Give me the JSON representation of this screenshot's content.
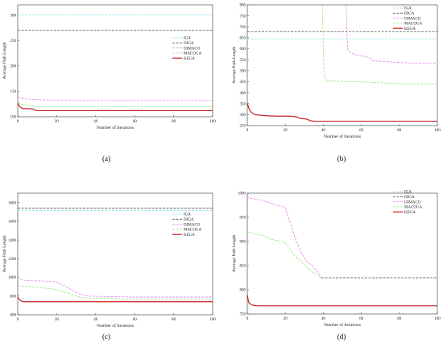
{
  "chart_data": [
    {
      "id": "a",
      "panel_label": "(a)",
      "type": "line",
      "xlabel": "Number of Iterations",
      "ylabel": "Average Path Length",
      "xlim": [
        0,
        100
      ],
      "ylim": [
        100,
        320
      ],
      "xticks": [
        "0",
        "20",
        "40",
        "60",
        "80",
        "100"
      ],
      "yticks": [
        "100",
        "150",
        "200",
        "250",
        "300"
      ],
      "grid": false,
      "legend_position": "upper-right",
      "series": [
        {
          "name": "IGA",
          "color": "#7fe8ee",
          "dash": "3,1.5",
          "width": 0.8,
          "x": [
            0,
            100
          ],
          "y": [
            300,
            300
          ]
        },
        {
          "name": "DIGA",
          "color": "#555555",
          "dash": "3,1.5",
          "width": 0.8,
          "x": [
            0,
            100
          ],
          "y": [
            270,
            270
          ]
        },
        {
          "name": "DIMACO",
          "color": "#e97ee9",
          "dash": "3,1.5",
          "width": 0.8,
          "x": [
            0,
            2,
            4,
            8,
            15,
            30,
            100
          ],
          "y": [
            138,
            136,
            135,
            134,
            133,
            132,
            132
          ]
        },
        {
          "name": "MACOGA",
          "color": "#8ee878",
          "dash": "3,1.5",
          "width": 0.8,
          "x": [
            0,
            2,
            4,
            8,
            12,
            30,
            100
          ],
          "y": [
            128,
            125,
            123,
            121,
            120,
            120,
            120
          ]
        },
        {
          "name": "KEGA",
          "color": "#c62020",
          "dash": "",
          "width": 1.2,
          "x": [
            0,
            1,
            2,
            3,
            6,
            8,
            9,
            10,
            100
          ],
          "y": [
            127,
            120,
            117,
            116,
            116,
            115,
            113,
            112,
            112
          ]
        }
      ]
    },
    {
      "id": "b",
      "panel_label": "(b)",
      "type": "line",
      "xlabel": "Number of Iterations",
      "ylabel": "Average Path Length",
      "xlim": [
        0,
        100
      ],
      "ylim": [
        250,
        800
      ],
      "xticks": [
        "0",
        "20",
        "40",
        "60",
        "80",
        "100"
      ],
      "yticks": [
        "250",
        "300",
        "350",
        "400",
        "450",
        "500",
        "550",
        "600",
        "650",
        "700",
        "750",
        "800"
      ],
      "grid": false,
      "legend_position": "top-right",
      "series": [
        {
          "name": "IGA",
          "color": "#7fe8ee",
          "dash": "3,1.5",
          "width": 0.8,
          "x": [
            0,
            100
          ],
          "y": [
            645,
            645
          ]
        },
        {
          "name": "DIGA",
          "color": "#555555",
          "dash": "3,1.5",
          "width": 0.8,
          "x": [
            0,
            100
          ],
          "y": [
            678,
            678
          ]
        },
        {
          "name": "DIMACO",
          "color": "#e97ee9",
          "dash": "3,1.5",
          "width": 0.8,
          "x": [
            52,
            52.5,
            53,
            56,
            60,
            64,
            66,
            75,
            85,
            100
          ],
          "y": [
            800,
            640,
            590,
            575,
            568,
            560,
            545,
            540,
            535,
            535
          ]
        },
        {
          "name": "MACOGA",
          "color": "#8ee878",
          "dash": "3,1.5",
          "width": 0.8,
          "x": [
            39.5,
            40,
            40.5,
            42,
            48,
            55,
            65,
            75,
            85,
            100
          ],
          "y": [
            800,
            600,
            470,
            455,
            452,
            450,
            447,
            443,
            440,
            440
          ]
        },
        {
          "name": "KEGA",
          "color": "#c62020",
          "dash": "",
          "width": 1.2,
          "x": [
            0,
            1,
            2,
            4,
            6,
            10,
            15,
            22,
            26,
            28,
            31,
            33,
            35,
            100
          ],
          "y": [
            352,
            325,
            312,
            300,
            298,
            295,
            293,
            293,
            290,
            282,
            280,
            273,
            270,
            270
          ]
        }
      ]
    },
    {
      "id": "c",
      "panel_label": "(c)",
      "type": "line",
      "xlabel": "Number of Iterations",
      "ylabel": "Average Path Length",
      "xlim": [
        0,
        100
      ],
      "ylim": [
        600,
        1900
      ],
      "xticks": [
        "0",
        "20",
        "40",
        "60",
        "80",
        "100"
      ],
      "yticks": [
        "600",
        "800",
        "1000",
        "1200",
        "1400",
        "1600",
        "1800"
      ],
      "grid": false,
      "legend_position": "center-right",
      "series": [
        {
          "name": "IGA",
          "color": "#7fe8ee",
          "dash": "3,1.5",
          "width": 0.8,
          "x": [
            0,
            100
          ],
          "y": [
            1715,
            1715
          ]
        },
        {
          "name": "DIGA",
          "color": "#555555",
          "dash": "3,1.5",
          "width": 0.8,
          "x": [
            0,
            100
          ],
          "y": [
            1740,
            1740
          ]
        },
        {
          "name": "DIMACO",
          "color": "#e97ee9",
          "dash": "3,1.5",
          "width": 0.8,
          "x": [
            0,
            2,
            5,
            15,
            20,
            24,
            28,
            32,
            36,
            45,
            60,
            100
          ],
          "y": [
            1010,
            975,
            965,
            960,
            950,
            910,
            860,
            820,
            800,
            795,
            790,
            790
          ]
        },
        {
          "name": "MACOGA",
          "color": "#8ee878",
          "dash": "3,1.5",
          "width": 0.8,
          "x": [
            0,
            3,
            10,
            20,
            26,
            30,
            34,
            40,
            60,
            100
          ],
          "y": [
            910,
            905,
            895,
            870,
            830,
            800,
            780,
            775,
            770,
            770
          ]
        },
        {
          "name": "KEGA",
          "color": "#c62020",
          "dash": "",
          "width": 1.2,
          "x": [
            0,
            1,
            2,
            3,
            100
          ],
          "y": [
            790,
            760,
            745,
            740,
            740
          ]
        }
      ]
    },
    {
      "id": "d",
      "panel_label": "(d)",
      "type": "line",
      "xlabel": "Number of Iterations",
      "ylabel": "Average Path Length",
      "xlim": [
        0,
        100
      ],
      "ylim": [
        750,
        1000
      ],
      "xticks": [
        "0",
        "20",
        "40",
        "60",
        "80",
        "100"
      ],
      "yticks": [
        "750",
        "800",
        "850",
        "900",
        "950",
        "1000"
      ],
      "grid": false,
      "legend_position": "top-right",
      "series": [
        {
          "name": "IGA",
          "color": "#7fe8ee",
          "dash": "3,1.5",
          "width": 0.8,
          "x": [
            39,
            100
          ],
          "y": [
            825,
            825
          ]
        },
        {
          "name": "DIGA",
          "color": "#555555",
          "dash": "3,1.5",
          "width": 0.8,
          "x": [
            39,
            100
          ],
          "y": [
            825,
            825
          ]
        },
        {
          "name": "DIMACO",
          "color": "#e97ee9",
          "dash": "3,1.5",
          "width": 0.8,
          "x": [
            0,
            1,
            4,
            8,
            12,
            16,
            20,
            22,
            25,
            28,
            31,
            34,
            37,
            39
          ],
          "y": [
            995,
            990,
            988,
            985,
            980,
            975,
            970,
            945,
            910,
            880,
            860,
            850,
            838,
            825
          ]
        },
        {
          "name": "MACOGA",
          "color": "#8ee878",
          "dash": "3,1.5",
          "width": 0.8,
          "x": [
            0,
            2,
            5,
            9,
            12,
            16,
            20,
            22,
            25,
            28,
            31,
            34,
            37,
            39
          ],
          "y": [
            920,
            918,
            915,
            912,
            905,
            902,
            898,
            885,
            870,
            860,
            848,
            838,
            830,
            825
          ]
        },
        {
          "name": "KEGA",
          "color": "#c62020",
          "dash": "",
          "width": 1.2,
          "x": [
            0,
            0.5,
            1,
            2,
            3,
            5,
            100
          ],
          "y": [
            790,
            778,
            772,
            770,
            768,
            767,
            767
          ]
        }
      ]
    }
  ]
}
